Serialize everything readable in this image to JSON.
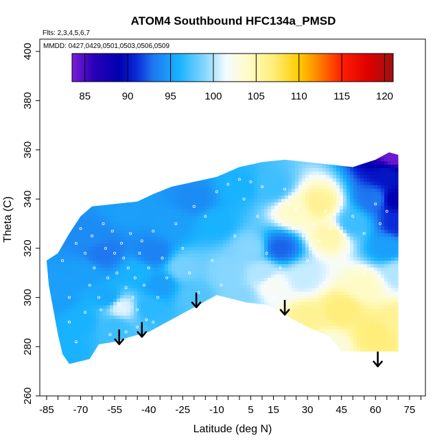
{
  "chart_data": {
    "type": "heatmap",
    "title": "ATOM4 Southbound HFC134a_PMSD",
    "subtitle_flights": "Flts: 2,3,4,5,6,7",
    "subtitle_dates": "MMDD: 0427,0429,0501,0503,0506,0509",
    "xlabel": "Latitude (deg N)",
    "ylabel": "Theta (C)",
    "xlim": [
      -88,
      82
    ],
    "ylim": [
      260,
      405
    ],
    "x_ticks": [
      -85,
      -70,
      -55,
      -40,
      -25,
      -10,
      5,
      15,
      30,
      45,
      60,
      75
    ],
    "x_minor_step": 5,
    "y_ticks": [
      260,
      280,
      300,
      320,
      340,
      360,
      380,
      400
    ],
    "colorbar": {
      "min": 83.5,
      "max": 121,
      "ticks": [
        85,
        90,
        95,
        100,
        105,
        110,
        115,
        120
      ],
      "stops": [
        {
          "v": 83.5,
          "c": "#7a1fd6"
        },
        {
          "v": 86,
          "c": "#2a00b8"
        },
        {
          "v": 89,
          "c": "#0000b0"
        },
        {
          "v": 91,
          "c": "#0a2ad8"
        },
        {
          "v": 93,
          "c": "#1e78f0"
        },
        {
          "v": 96,
          "c": "#19b2ff"
        },
        {
          "v": 99,
          "c": "#86d6ff"
        },
        {
          "v": 101.5,
          "c": "#f4fbff"
        },
        {
          "v": 104,
          "c": "#fffbc8"
        },
        {
          "v": 107,
          "c": "#ffee7a"
        },
        {
          "v": 110,
          "c": "#ffcc00"
        },
        {
          "v": 112,
          "c": "#ff8c00"
        },
        {
          "v": 115,
          "c": "#ff1e00"
        },
        {
          "v": 118,
          "c": "#e00000"
        },
        {
          "v": 121,
          "c": "#a01010"
        }
      ]
    },
    "domain_boundary": {
      "top": [
        [
          -85,
          315
        ],
        [
          -80,
          318
        ],
        [
          -75,
          326
        ],
        [
          -70,
          333
        ],
        [
          -65,
          337
        ],
        [
          -55,
          338
        ],
        [
          -45,
          339
        ],
        [
          -38,
          342
        ],
        [
          -30,
          345
        ],
        [
          -20,
          347
        ],
        [
          -10,
          349
        ],
        [
          0,
          353
        ],
        [
          10,
          355
        ],
        [
          20,
          356
        ],
        [
          30,
          355
        ],
        [
          40,
          354
        ],
        [
          50,
          353
        ],
        [
          60,
          356
        ],
        [
          66,
          359
        ],
        [
          70,
          358
        ],
        [
          71,
          345
        ],
        [
          71.5,
          320
        ],
        [
          71.5,
          300
        ],
        [
          71,
          280
        ]
      ],
      "bottom": [
        [
          71,
          278
        ],
        [
          45,
          278
        ],
        [
          40,
          284
        ],
        [
          30,
          288
        ],
        [
          20,
          293
        ],
        [
          12,
          297
        ],
        [
          3,
          298
        ],
        [
          -10,
          301
        ],
        [
          -20,
          296
        ],
        [
          -28,
          292
        ],
        [
          -40,
          286
        ],
        [
          -48,
          284
        ],
        [
          -55,
          282
        ],
        [
          -62,
          281
        ],
        [
          -66,
          275
        ],
        [
          -75,
          273
        ],
        [
          -78,
          277
        ],
        [
          -80,
          285
        ],
        [
          -82,
          295
        ],
        [
          -84,
          305
        ],
        [
          -85,
          315
        ]
      ]
    },
    "field_anchors": [
      {
        "x": -80,
        "y": 300,
        "v": 95
      },
      {
        "x": -78,
        "y": 280,
        "v": 96
      },
      {
        "x": -70,
        "y": 290,
        "v": 96
      },
      {
        "x": -68,
        "y": 310,
        "v": 95
      },
      {
        "x": -65,
        "y": 325,
        "v": 94
      },
      {
        "x": -60,
        "y": 318,
        "v": 93
      },
      {
        "x": -58,
        "y": 300,
        "v": 95.5
      },
      {
        "x": -55,
        "y": 288,
        "v": 97
      },
      {
        "x": -52,
        "y": 296,
        "v": 101
      },
      {
        "x": -50,
        "y": 335,
        "v": 95
      },
      {
        "x": -45,
        "y": 310,
        "v": 96
      },
      {
        "x": -40,
        "y": 296,
        "v": 96.5
      },
      {
        "x": -38,
        "y": 318,
        "v": 93.5
      },
      {
        "x": -35,
        "y": 305,
        "v": 95
      },
      {
        "x": -30,
        "y": 330,
        "v": 95
      },
      {
        "x": -25,
        "y": 312,
        "v": 98.5
      },
      {
        "x": -20,
        "y": 300,
        "v": 97.5
      },
      {
        "x": -20,
        "y": 340,
        "v": 94
      },
      {
        "x": -10,
        "y": 330,
        "v": 96
      },
      {
        "x": -5,
        "y": 310,
        "v": 99
      },
      {
        "x": 0,
        "y": 345,
        "v": 96
      },
      {
        "x": 5,
        "y": 320,
        "v": 99
      },
      {
        "x": 10,
        "y": 310,
        "v": 100
      },
      {
        "x": 15,
        "y": 305,
        "v": 102
      },
      {
        "x": 15,
        "y": 345,
        "v": 97
      },
      {
        "x": 18,
        "y": 320,
        "v": 92.5
      },
      {
        "x": 25,
        "y": 335,
        "v": 104
      },
      {
        "x": 28,
        "y": 308,
        "v": 100.5
      },
      {
        "x": 30,
        "y": 292,
        "v": 106
      },
      {
        "x": 35,
        "y": 338,
        "v": 106
      },
      {
        "x": 40,
        "y": 325,
        "v": 105
      },
      {
        "x": 45,
        "y": 295,
        "v": 107
      },
      {
        "x": 50,
        "y": 330,
        "v": 97
      },
      {
        "x": 55,
        "y": 305,
        "v": 104
      },
      {
        "x": 60,
        "y": 285,
        "v": 107
      },
      {
        "x": 60,
        "y": 340,
        "v": 93
      },
      {
        "x": 65,
        "y": 320,
        "v": 95
      },
      {
        "x": 65,
        "y": 350,
        "v": 90
      },
      {
        "x": 68,
        "y": 340,
        "v": 89
      },
      {
        "x": 70,
        "y": 330,
        "v": 91
      },
      {
        "x": 68,
        "y": 357,
        "v": 84
      },
      {
        "x": 70,
        "y": 290,
        "v": 106
      },
      {
        "x": 70,
        "y": 310,
        "v": 100
      },
      {
        "x": 40,
        "y": 280,
        "v": 103
      },
      {
        "x": 0,
        "y": 300,
        "v": 99
      }
    ],
    "sample_points": [
      [
        -78,
        315
      ],
      [
        -75,
        300
      ],
      [
        -72,
        322
      ],
      [
        -70,
        328
      ],
      [
        -68,
        318
      ],
      [
        -66,
        305
      ],
      [
        -65,
        325
      ],
      [
        -64,
        312
      ],
      [
        -62,
        300
      ],
      [
        -61,
        295
      ],
      [
        -60,
        330
      ],
      [
        -59,
        320
      ],
      [
        -58,
        308
      ],
      [
        -57,
        285
      ],
      [
        -56,
        327
      ],
      [
        -55,
        318
      ],
      [
        -54,
        310
      ],
      [
        -53,
        297
      ],
      [
        -52,
        322
      ],
      [
        -51,
        316
      ],
      [
        -50,
        304
      ],
      [
        -49,
        312
      ],
      [
        -48,
        326
      ],
      [
        -47,
        300
      ],
      [
        -46,
        308
      ],
      [
        -45,
        295
      ],
      [
        -44,
        318
      ],
      [
        -43,
        323
      ],
      [
        -42,
        305
      ],
      [
        -41,
        291
      ],
      [
        -40,
        312
      ],
      [
        -38,
        327
      ],
      [
        -36,
        300
      ],
      [
        -34,
        316
      ],
      [
        -32,
        308
      ],
      [
        -30,
        290
      ],
      [
        -28,
        330
      ],
      [
        -25,
        320
      ],
      [
        -22,
        310
      ],
      [
        -20,
        337
      ],
      [
        -18,
        302
      ],
      [
        -15,
        333
      ],
      [
        -12,
        315
      ],
      [
        -10,
        343
      ],
      [
        -8,
        305
      ],
      [
        -5,
        346
      ],
      [
        -2,
        325
      ],
      [
        0,
        348
      ],
      [
        2,
        340
      ],
      [
        5,
        347
      ],
      [
        8,
        333
      ],
      [
        10,
        345
      ],
      [
        12,
        318
      ],
      [
        15,
        300
      ],
      [
        18,
        312
      ],
      [
        20,
        344
      ],
      [
        22,
        338
      ],
      [
        25,
        336
      ],
      [
        28,
        325
      ],
      [
        30,
        315
      ],
      [
        33,
        330
      ],
      [
        35,
        323
      ],
      [
        38,
        335
      ],
      [
        40,
        328
      ],
      [
        45,
        318
      ],
      [
        50,
        333
      ],
      [
        55,
        326
      ],
      [
        60,
        338
      ],
      [
        62,
        330
      ],
      [
        65,
        335
      ],
      [
        55,
        310
      ],
      [
        -75,
        290
      ],
      [
        -72,
        282
      ],
      [
        -68,
        294
      ],
      [
        -63,
        276
      ],
      [
        -50,
        286
      ],
      [
        -45,
        288
      ],
      [
        -38,
        290
      ]
    ],
    "arrows": [
      {
        "x": -53,
        "y_start": 287,
        "y_end": 281
      },
      {
        "x": -43,
        "y_start": 290,
        "y_end": 284
      },
      {
        "x": -19,
        "y_start": 302,
        "y_end": 296
      },
      {
        "x": 20,
        "y_start": 299,
        "y_end": 293
      },
      {
        "x": 61,
        "y_start": 278,
        "y_end": 272
      }
    ]
  }
}
